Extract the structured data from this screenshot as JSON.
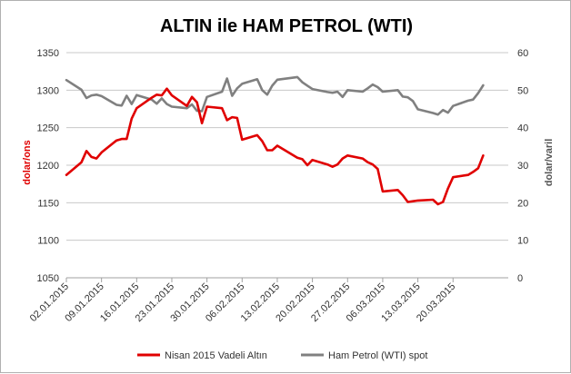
{
  "chart_data": {
    "type": "line",
    "title": "ALTIN ile HAM PETROL (WTI)",
    "ylabel_left": "dolar/ons",
    "ylabel_right": "dolar/varil",
    "ylim_left": [
      1050,
      1350
    ],
    "ylim_right": [
      0,
      60
    ],
    "yticks_left": [
      "1050",
      "1100",
      "1150",
      "1200",
      "1250",
      "1300",
      "1350"
    ],
    "yticks_right": [
      "0",
      "10",
      "20",
      "30",
      "40",
      "50",
      "60"
    ],
    "x_start": "2015-01-02",
    "x_end": "2015-03-31",
    "xtick_labels": [
      "02.01.2015",
      "09.01.2015",
      "16.01.2015",
      "23.01.2015",
      "30.01.2015",
      "06.02.2015",
      "13.02.2015",
      "20.02.2015",
      "27.02.2015",
      "06.03.2015",
      "13.03.2015",
      "20.03.2015"
    ],
    "grid": "horizontal",
    "legend": "bottom",
    "series": [
      {
        "name": "Nisan 2015 Vadeli Altın",
        "axis": "left",
        "color": "#e00000",
        "points": [
          [
            "2015-01-02",
            1187
          ],
          [
            "2015-01-05",
            1204
          ],
          [
            "2015-01-06",
            1219
          ],
          [
            "2015-01-07",
            1211
          ],
          [
            "2015-01-08",
            1209
          ],
          [
            "2015-01-09",
            1217
          ],
          [
            "2015-01-12",
            1233
          ],
          [
            "2015-01-13",
            1235
          ],
          [
            "2015-01-14",
            1235
          ],
          [
            "2015-01-15",
            1262
          ],
          [
            "2015-01-16",
            1276
          ],
          [
            "2015-01-19",
            1290
          ],
          [
            "2015-01-20",
            1294
          ],
          [
            "2015-01-21",
            1293
          ],
          [
            "2015-01-22",
            1302
          ],
          [
            "2015-01-23",
            1293
          ],
          [
            "2015-01-26",
            1279
          ],
          [
            "2015-01-27",
            1291
          ],
          [
            "2015-01-28",
            1284
          ],
          [
            "2015-01-29",
            1256
          ],
          [
            "2015-01-30",
            1278
          ],
          [
            "2015-02-02",
            1276
          ],
          [
            "2015-02-03",
            1260
          ],
          [
            "2015-02-04",
            1264
          ],
          [
            "2015-02-05",
            1263
          ],
          [
            "2015-02-06",
            1234
          ],
          [
            "2015-02-09",
            1240
          ],
          [
            "2015-02-10",
            1232
          ],
          [
            "2015-02-11",
            1220
          ],
          [
            "2015-02-12",
            1220
          ],
          [
            "2015-02-13",
            1226
          ],
          [
            "2015-02-17",
            1210
          ],
          [
            "2015-02-18",
            1208
          ],
          [
            "2015-02-19",
            1200
          ],
          [
            "2015-02-20",
            1207
          ],
          [
            "2015-02-23",
            1201
          ],
          [
            "2015-02-24",
            1198
          ],
          [
            "2015-02-25",
            1201
          ],
          [
            "2015-02-26",
            1209
          ],
          [
            "2015-02-27",
            1213
          ],
          [
            "2015-03-02",
            1209
          ],
          [
            "2015-03-03",
            1204
          ],
          [
            "2015-03-04",
            1201
          ],
          [
            "2015-03-05",
            1195
          ],
          [
            "2015-03-06",
            1165
          ],
          [
            "2015-03-09",
            1167
          ],
          [
            "2015-03-10",
            1160
          ],
          [
            "2015-03-11",
            1151
          ],
          [
            "2015-03-12",
            1152
          ],
          [
            "2015-03-13",
            1153
          ],
          [
            "2015-03-16",
            1154
          ],
          [
            "2015-03-17",
            1148
          ],
          [
            "2015-03-18",
            1151
          ],
          [
            "2015-03-19",
            1169
          ],
          [
            "2015-03-20",
            1184
          ],
          [
            "2015-03-23",
            1187
          ],
          [
            "2015-03-24",
            1191
          ],
          [
            "2015-03-25",
            1196
          ],
          [
            "2015-03-26",
            1213
          ]
        ]
      },
      {
        "name": "Ham Petrol (WTI) spot",
        "axis": "right",
        "color": "#808080",
        "points": [
          [
            "2015-01-02",
            52.7
          ],
          [
            "2015-01-05",
            50.1
          ],
          [
            "2015-01-06",
            47.9
          ],
          [
            "2015-01-07",
            48.6
          ],
          [
            "2015-01-08",
            48.8
          ],
          [
            "2015-01-09",
            48.4
          ],
          [
            "2015-01-12",
            46.1
          ],
          [
            "2015-01-13",
            45.9
          ],
          [
            "2015-01-14",
            48.5
          ],
          [
            "2015-01-15",
            46.3
          ],
          [
            "2015-01-16",
            48.7
          ],
          [
            "2015-01-19",
            47.5
          ],
          [
            "2015-01-20",
            46.4
          ],
          [
            "2015-01-21",
            47.8
          ],
          [
            "2015-01-22",
            46.3
          ],
          [
            "2015-01-23",
            45.6
          ],
          [
            "2015-01-26",
            45.2
          ],
          [
            "2015-01-27",
            46.2
          ],
          [
            "2015-01-28",
            44.5
          ],
          [
            "2015-01-29",
            44.4
          ],
          [
            "2015-01-30",
            48.2
          ],
          [
            "2015-02-02",
            49.6
          ],
          [
            "2015-02-03",
            53.1
          ],
          [
            "2015-02-04",
            48.5
          ],
          [
            "2015-02-05",
            50.5
          ],
          [
            "2015-02-06",
            51.7
          ],
          [
            "2015-02-09",
            52.9
          ],
          [
            "2015-02-10",
            50.0
          ],
          [
            "2015-02-11",
            48.8
          ],
          [
            "2015-02-12",
            51.2
          ],
          [
            "2015-02-13",
            52.8
          ],
          [
            "2015-02-17",
            53.5
          ],
          [
            "2015-02-18",
            52.1
          ],
          [
            "2015-02-19",
            51.2
          ],
          [
            "2015-02-20",
            50.3
          ],
          [
            "2015-02-23",
            49.5
          ],
          [
            "2015-02-24",
            49.3
          ],
          [
            "2015-02-25",
            49.6
          ],
          [
            "2015-02-26",
            48.2
          ],
          [
            "2015-02-27",
            50.0
          ],
          [
            "2015-03-02",
            49.6
          ],
          [
            "2015-03-03",
            50.5
          ],
          [
            "2015-03-04",
            51.5
          ],
          [
            "2015-03-05",
            50.8
          ],
          [
            "2015-03-06",
            49.6
          ],
          [
            "2015-03-09",
            50.0
          ],
          [
            "2015-03-10",
            48.3
          ],
          [
            "2015-03-11",
            48.1
          ],
          [
            "2015-03-12",
            47.1
          ],
          [
            "2015-03-13",
            44.9
          ],
          [
            "2015-03-16",
            43.9
          ],
          [
            "2015-03-17",
            43.5
          ],
          [
            "2015-03-18",
            44.7
          ],
          [
            "2015-03-19",
            44.0
          ],
          [
            "2015-03-20",
            45.8
          ],
          [
            "2015-03-23",
            47.2
          ],
          [
            "2015-03-24",
            47.5
          ],
          [
            "2015-03-25",
            49.2
          ],
          [
            "2015-03-26",
            51.3
          ]
        ]
      }
    ]
  }
}
